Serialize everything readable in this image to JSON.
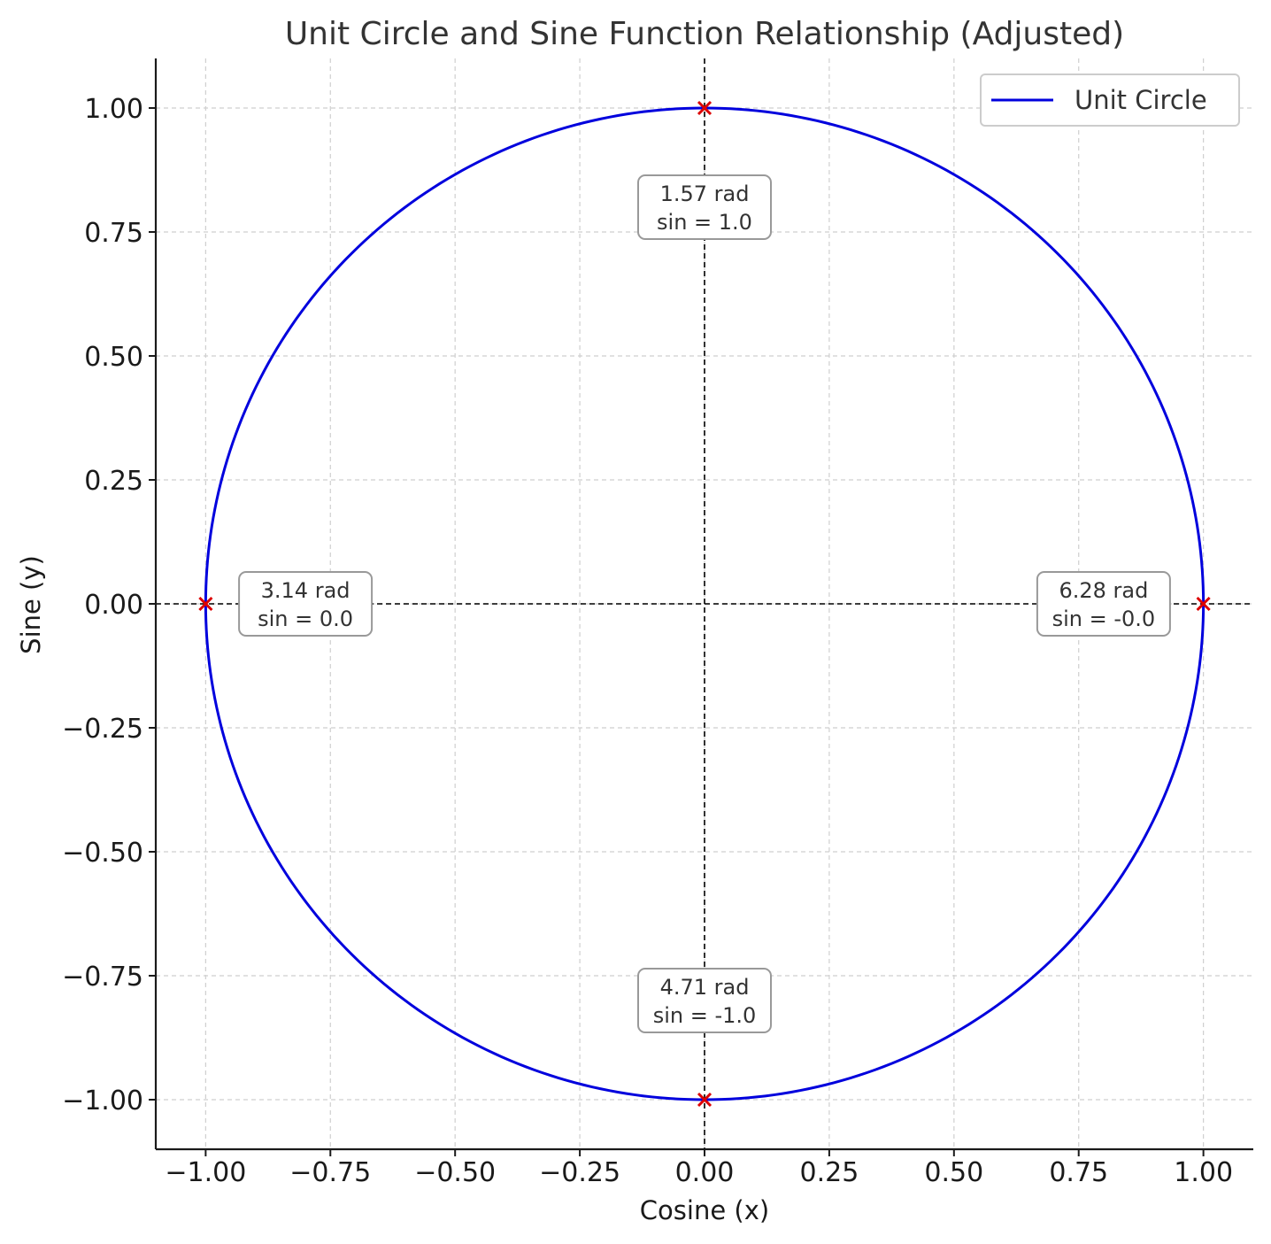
{
  "chart_data": {
    "type": "line",
    "title": "Unit Circle and Sine Function Relationship (Adjusted)",
    "xlabel": "Cosine (x)",
    "ylabel": "Sine (y)",
    "xlim": [
      -1.1,
      1.1
    ],
    "ylim": [
      -1.1,
      1.1
    ],
    "grid": true,
    "legend_position": "top-right",
    "x_ticks": [
      -1.0,
      -0.75,
      -0.5,
      -0.25,
      0.0,
      0.25,
      0.5,
      0.75,
      1.0
    ],
    "x_tick_labels": [
      "−1.00",
      "−0.75",
      "−0.50",
      "−0.25",
      "0.00",
      "0.25",
      "0.50",
      "0.75",
      "1.00"
    ],
    "y_ticks": [
      1.0,
      0.75,
      0.5,
      0.25,
      0.0,
      -0.25,
      -0.5,
      -0.75,
      -1.0
    ],
    "y_tick_labels": [
      "1.00",
      "0.75",
      "0.50",
      "0.25",
      "0.00",
      "−0.25",
      "−0.50",
      "−0.75",
      "−1.00"
    ],
    "series": [
      {
        "name": "Unit Circle",
        "shape": "circle",
        "center": [
          0,
          0
        ],
        "radius": 1,
        "color": "#0000dd"
      }
    ],
    "reference_lines": [
      {
        "orientation": "horizontal",
        "value": 0,
        "style": "dashed",
        "color": "#000000"
      },
      {
        "orientation": "vertical",
        "value": 0,
        "style": "dashed",
        "color": "#000000"
      }
    ],
    "points": [
      {
        "x": 0.0,
        "y": 1.0,
        "marker": "x",
        "color": "#dd0000",
        "label_line1": "1.57 rad",
        "label_line2": "sin = 1.0",
        "label_x": 0.0,
        "label_y": 0.8
      },
      {
        "x": -1.0,
        "y": 0.0,
        "marker": "x",
        "color": "#dd0000",
        "label_line1": "3.14 rad",
        "label_line2": "sin = 0.0",
        "label_x": -0.8,
        "label_y": 0.0
      },
      {
        "x": 0.0,
        "y": -1.0,
        "marker": "x",
        "color": "#dd0000",
        "label_line1": "4.71 rad",
        "label_line2": "sin = -1.0",
        "label_x": 0.0,
        "label_y": -0.8
      },
      {
        "x": 1.0,
        "y": 0.0,
        "marker": "x",
        "color": "#dd0000",
        "label_line1": "6.28 rad",
        "label_line2": "sin = -0.0",
        "label_x": 0.8,
        "label_y": 0.0
      }
    ]
  }
}
